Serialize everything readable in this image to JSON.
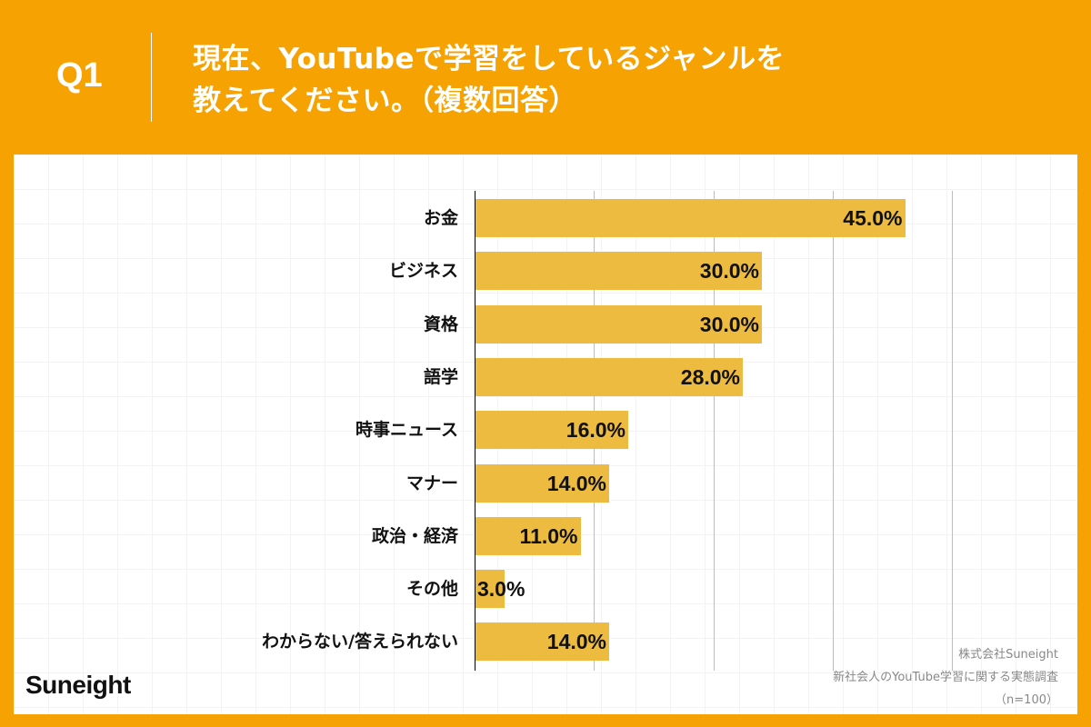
{
  "header": {
    "question_label": "Q1",
    "title_line1": "現在、YouTubeで学習をしているジャンルを",
    "title_line2": "教えてください。（複数回答）"
  },
  "footer": {
    "logo": "Suneight",
    "source_line1": "株式会社Suneight",
    "source_line2": "新社会人のYouTube学習に関する実態調査",
    "source_line3": "（n=100）"
  },
  "colors": {
    "background": "#F5A202",
    "bar": "#EDBB40",
    "panel": "#FFFFFF",
    "gridline": "#BDBDBD"
  },
  "chart_data": {
    "type": "bar",
    "orientation": "horizontal",
    "title": "現在、YouTubeで学習をしているジャンルを教えてください。（複数回答）",
    "xlabel": "",
    "ylabel": "",
    "xlim": [
      0,
      50
    ],
    "grid": true,
    "gridlines_at": [
      12.5,
      25,
      37.5,
      50
    ],
    "tick_labels_shown": false,
    "legend": null,
    "unit": "%",
    "categories": [
      "お金",
      "ビジネス",
      "資格",
      "語学",
      "時事ニュース",
      "マナー",
      "政治・経済",
      "その他",
      "わからない/答えられない"
    ],
    "values": [
      45.0,
      30.0,
      30.0,
      28.0,
      16.0,
      14.0,
      11.0,
      3.0,
      14.0
    ],
    "labels": [
      "45.0%",
      "30.0%",
      "30.0%",
      "28.0%",
      "16.0%",
      "14.0%",
      "11.0%",
      "3.0%",
      "14.0%"
    ],
    "n": 100
  }
}
